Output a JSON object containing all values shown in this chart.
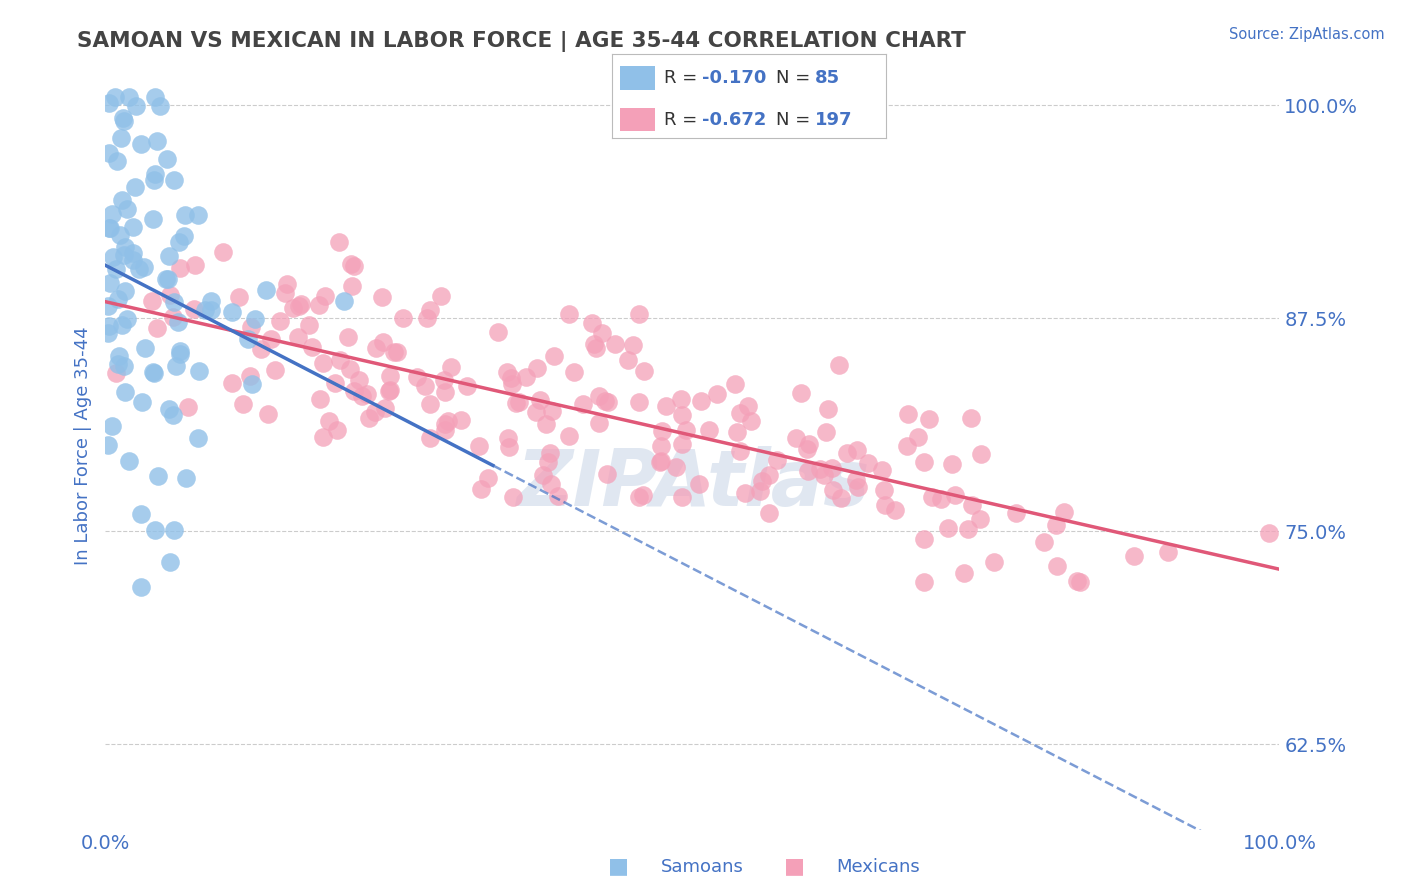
{
  "title": "SAMOAN VS MEXICAN IN LABOR FORCE | AGE 35-44 CORRELATION CHART",
  "source": "Source: ZipAtlas.com",
  "ylabel": "In Labor Force | Age 35-44",
  "xlim": [
    0.0,
    1.0
  ],
  "ylim": [
    0.575,
    1.025
  ],
  "yticks": [
    0.625,
    0.75,
    0.875,
    1.0
  ],
  "ytick_labels": [
    "62.5%",
    "75.0%",
    "87.5%",
    "100.0%"
  ],
  "xticks": [
    0.0,
    1.0
  ],
  "xtick_labels": [
    "0.0%",
    "100.0%"
  ],
  "color_samoan": "#90C0E8",
  "color_mexican": "#F4A0B8",
  "color_line_samoan": "#4472C4",
  "color_line_mexican": "#E05878",
  "color_bg": "#ffffff",
  "color_grid": "#cccccc",
  "color_title": "#444444",
  "color_axis": "#4472C4",
  "watermark_color": "#ccd8e8"
}
